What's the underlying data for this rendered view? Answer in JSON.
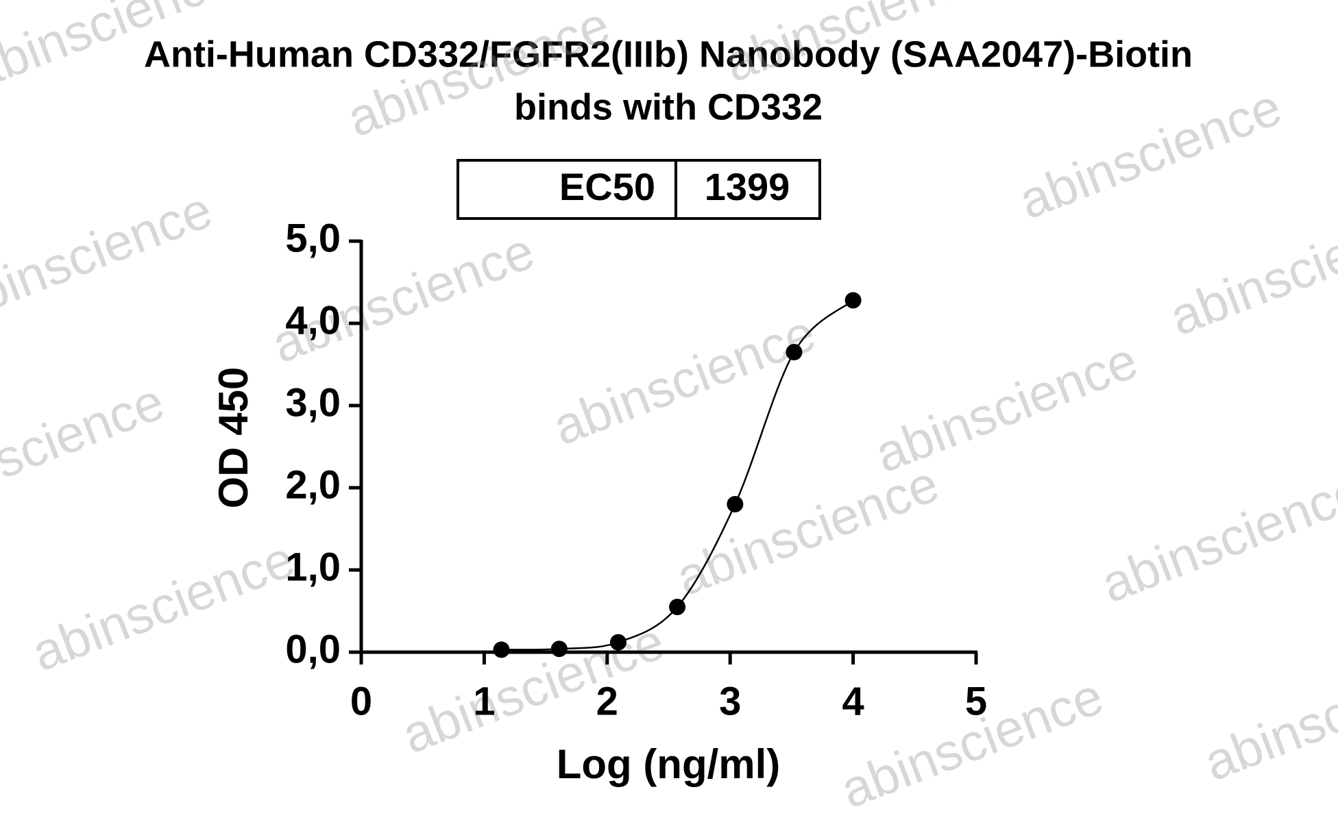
{
  "chart_data": {
    "type": "scatter",
    "title": [
      "Anti-Human CD332/FGFR2(IIIb) Nanobody (SAA2047)-Biotin",
      "binds with CD332"
    ],
    "ec50_table": {
      "label": "EC50",
      "value": 1399
    },
    "x_label": "Log (ng/ml)",
    "y_label": "OD 450",
    "watermark": "abinscience",
    "series": [
      {
        "color": "#000000",
        "x": [
          1.14,
          1.61,
          2.09,
          2.57,
          3.04,
          3.52,
          4.0
        ],
        "values": [
          0.03,
          0.04,
          0.12,
          0.55,
          1.8,
          3.65,
          4.28
        ]
      }
    ],
    "xlim": [
      0,
      5
    ],
    "xticks": [
      0,
      1,
      2,
      3,
      4,
      5
    ],
    "ylim": [
      0,
      5
    ],
    "yticks": [
      {
        "value": 0,
        "label": "0,0"
      },
      {
        "value": 1,
        "label": "1,0"
      },
      {
        "value": 2,
        "label": "2,0"
      },
      {
        "value": 3,
        "label": "3,0"
      },
      {
        "value": 4,
        "label": "4,0"
      },
      {
        "value": 5,
        "label": "5,0"
      }
    ],
    "grid": false
  }
}
